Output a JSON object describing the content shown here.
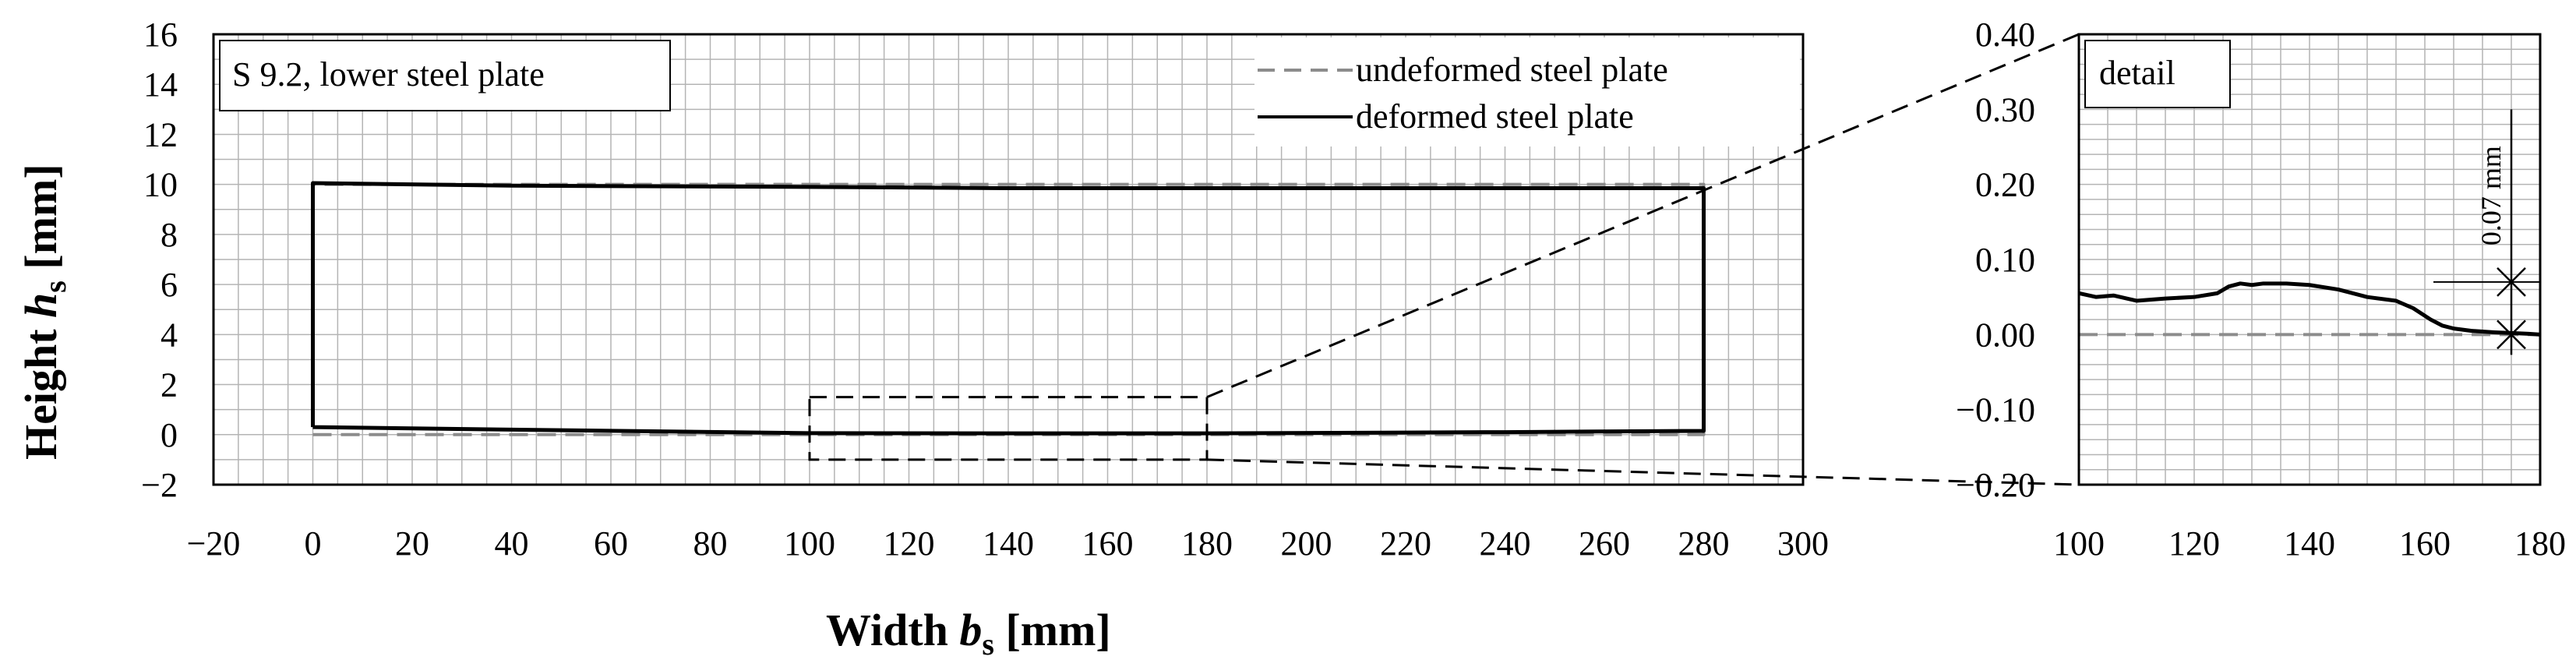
{
  "chart_data": [
    {
      "type": "line",
      "label_box": "S 9.2, lower steel plate",
      "xlabel": "Width",
      "xlabel_symbol": "b",
      "xlabel_subscript": "s",
      "xlabel_unit": "[mm]",
      "ylabel": "Height",
      "ylabel_symbol": "h",
      "ylabel_subscript": "s",
      "ylabel_unit": "[mm]",
      "xlim": [
        -20,
        300
      ],
      "ylim": [
        -2,
        16
      ],
      "xticks": [
        "−20",
        "0",
        "20",
        "40",
        "60",
        "80",
        "100",
        "120",
        "140",
        "160",
        "180",
        "200",
        "220",
        "240",
        "260",
        "280",
        "300"
      ],
      "yticks": [
        "−2",
        "0",
        "2",
        "4",
        "6",
        "8",
        "10",
        "12",
        "14",
        "16"
      ],
      "grid": true,
      "legend_position": "top-right",
      "series": [
        {
          "name": "undeformed steel plate",
          "style": "dashed",
          "color": "#8c8c8c",
          "x": [
            0,
            280,
            280,
            0,
            0
          ],
          "y": [
            0,
            0,
            10,
            10,
            0
          ]
        },
        {
          "name": "deformed steel plate",
          "style": "solid",
          "color": "#000000",
          "x": [
            0,
            40,
            100,
            140,
            180,
            240,
            280,
            280,
            240,
            180,
            140,
            100,
            40,
            0,
            0
          ],
          "y": [
            0.3,
            0.2,
            0.06,
            0.05,
            0.05,
            0.1,
            0.15,
            9.85,
            9.85,
            9.85,
            9.85,
            9.9,
            9.95,
            10.05,
            0.3
          ]
        }
      ],
      "detail_rect": {
        "x": [
          100,
          180
        ],
        "y": [
          -1,
          1.5
        ]
      }
    },
    {
      "type": "line",
      "label_box": "detail",
      "xlim": [
        100,
        180
      ],
      "ylim": [
        -0.2,
        0.4
      ],
      "xticks": [
        "100",
        "120",
        "140",
        "160",
        "180"
      ],
      "yticks": [
        "−0.20",
        "−0.10",
        "0.00",
        "0.10",
        "0.20",
        "0.30",
        "0.40"
      ],
      "grid": true,
      "dimension_label": "0.07 mm",
      "dimension": {
        "x": 175,
        "y_from": 0,
        "y_to": 0.07
      },
      "series": [
        {
          "name": "undeformed steel plate",
          "style": "dashed",
          "color": "#8c8c8c",
          "x": [
            100,
            180
          ],
          "y": [
            0,
            0
          ]
        },
        {
          "name": "deformed steel plate",
          "style": "solid",
          "color": "#000000",
          "x": [
            100,
            103,
            106,
            110,
            115,
            120,
            124,
            126,
            128,
            130,
            132,
            136,
            140,
            145,
            150,
            155,
            158,
            161,
            163,
            165,
            168,
            172,
            175,
            178,
            180
          ],
          "y": [
            0.055,
            0.05,
            0.052,
            0.045,
            0.048,
            0.05,
            0.055,
            0.064,
            0.068,
            0.066,
            0.068,
            0.068,
            0.066,
            0.06,
            0.05,
            0.045,
            0.035,
            0.02,
            0.012,
            0.008,
            0.005,
            0.003,
            0.002,
            0.001,
            0
          ]
        }
      ]
    }
  ]
}
